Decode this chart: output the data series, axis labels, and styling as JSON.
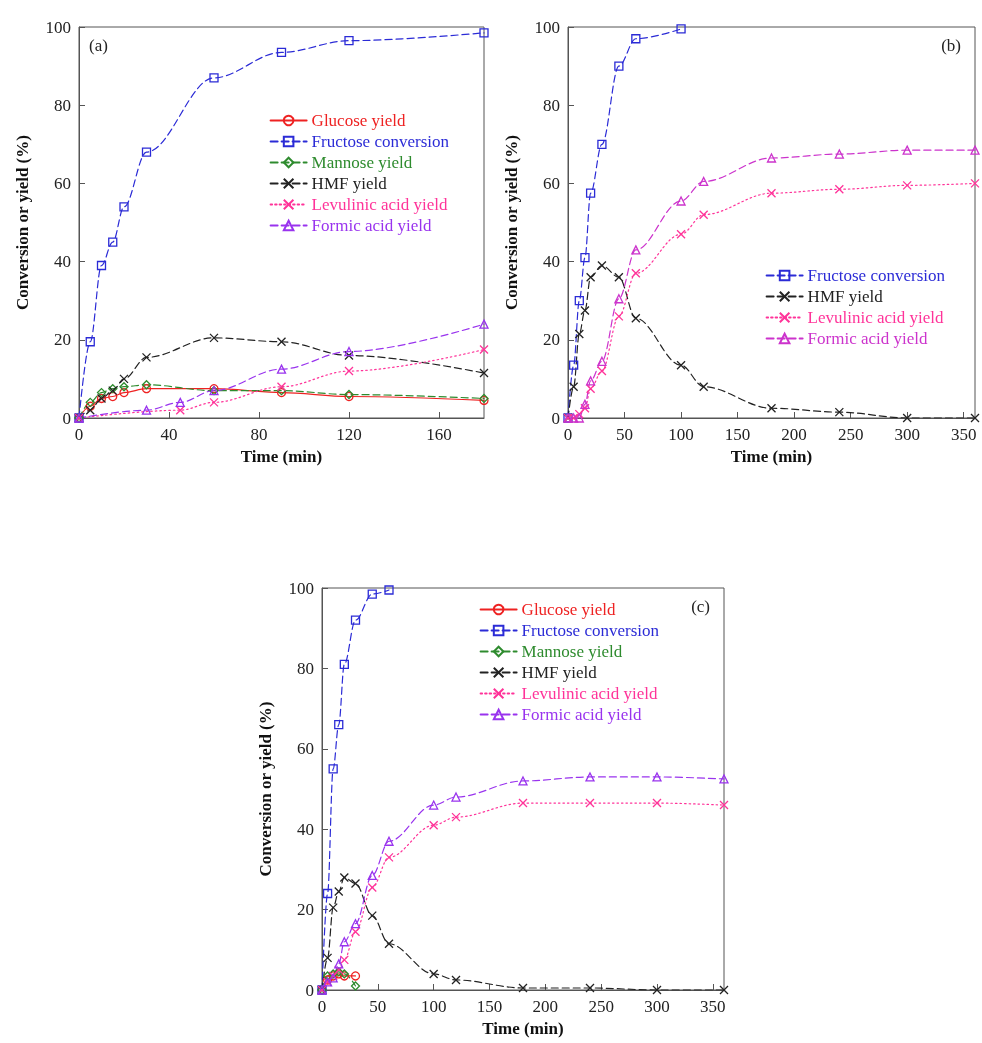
{
  "chart_data": [
    {
      "type": "line",
      "xlabel": "Time (min)",
      "ylabel": "Conversion or yield (%)",
      "annotations": [
        "(a)"
      ],
      "xlim": [
        0,
        180
      ],
      "xticks": [
        0,
        40,
        80,
        120,
        160
      ],
      "ylim": [
        0,
        100
      ],
      "yticks": [
        0,
        20,
        40,
        60,
        80,
        100
      ],
      "grid": false,
      "legend": "right",
      "series": [
        {
          "name": "Glucose yield",
          "color": "#ee2222",
          "marker": "circle",
          "line_style": "solid",
          "x": [
            0,
            5,
            10,
            15,
            20,
            30,
            60,
            90,
            120,
            180
          ],
          "values": [
            0,
            3,
            5,
            5.5,
            6.5,
            7.5,
            7.5,
            6.5,
            5.5,
            4.5
          ]
        },
        {
          "name": "Fructose conversion",
          "color": "#2b2bd6",
          "marker": "square",
          "line_style": "dashed",
          "x": [
            0,
            5,
            10,
            15,
            20,
            30,
            60,
            90,
            120,
            180
          ],
          "values": [
            0,
            19.5,
            39,
            45,
            54,
            68,
            87,
            93.5,
            96.5,
            98.5
          ]
        },
        {
          "name": "Mannose yield",
          "color": "#2e8b2e",
          "marker": "diamond",
          "line_style": "dashed",
          "x": [
            0,
            5,
            10,
            15,
            20,
            30,
            60,
            90,
            120,
            180
          ],
          "values": [
            0,
            4,
            6.5,
            7.5,
            8,
            8.5,
            7,
            7,
            6,
            5
          ]
        },
        {
          "name": "HMF yield",
          "color": "#222222",
          "marker": "cross",
          "line_style": "dashed",
          "x": [
            0,
            5,
            10,
            15,
            20,
            30,
            60,
            90,
            120,
            180
          ],
          "values": [
            0,
            2,
            5,
            7,
            10,
            15.5,
            20.5,
            19.5,
            16,
            11.5
          ]
        },
        {
          "name": "Levulinic acid yield",
          "color": "#ff3399",
          "marker": "cross",
          "line_style": "dotted",
          "x": [
            0,
            45,
            60,
            90,
            120,
            180
          ],
          "values": [
            0,
            2,
            4,
            8,
            12,
            17.5
          ]
        },
        {
          "name": "Formic acid yield",
          "color": "#9933ee",
          "marker": "triangle",
          "line_style": "dashed",
          "x": [
            0,
            30,
            45,
            60,
            90,
            120,
            180
          ],
          "values": [
            0,
            2,
            4,
            7,
            12.5,
            17,
            24
          ]
        }
      ]
    },
    {
      "type": "line",
      "xlabel": "Time (min)",
      "ylabel": "Conversion or yield (%)",
      "annotations": [
        "(b)"
      ],
      "xlim": [
        0,
        360
      ],
      "xticks": [
        0,
        50,
        100,
        150,
        200,
        250,
        300,
        350
      ],
      "ylim": [
        0,
        100
      ],
      "yticks": [
        0,
        20,
        40,
        60,
        80,
        100
      ],
      "grid": false,
      "legend": "bottom right",
      "series": [
        {
          "name": "Fructose conversion",
          "color": "#2b2bd6",
          "marker": "square",
          "line_style": "dashed",
          "x": [
            0,
            5,
            10,
            15,
            20,
            30,
            45,
            60,
            100
          ],
          "values": [
            0,
            13.5,
            30,
            41,
            57.5,
            70,
            90,
            97,
            99.5
          ]
        },
        {
          "name": "HMF yield",
          "color": "#222222",
          "marker": "cross",
          "line_style": "dashed",
          "x": [
            0,
            5,
            10,
            15,
            20,
            30,
            45,
            60,
            100,
            120,
            180,
            240,
            300,
            360
          ],
          "values": [
            0,
            8,
            21.5,
            27.5,
            36,
            39,
            36,
            25.5,
            13.5,
            8,
            2.5,
            1.5,
            0,
            0
          ]
        },
        {
          "name": "Levulinic acid yield",
          "color": "#ff3399",
          "marker": "cross",
          "line_style": "dotted",
          "x": [
            0,
            5,
            10,
            15,
            20,
            30,
            45,
            60,
            100,
            120,
            180,
            240,
            300,
            360
          ],
          "values": [
            0,
            0,
            1,
            2.5,
            7.5,
            12,
            26,
            37,
            47,
            52,
            57.5,
            58.5,
            59.5,
            60
          ]
        },
        {
          "name": "Formic acid yield",
          "color": "#cc33cc",
          "marker": "triangle",
          "line_style": "dashed",
          "x": [
            0,
            5,
            10,
            15,
            20,
            30,
            45,
            60,
            100,
            120,
            180,
            240,
            300,
            360
          ],
          "values": [
            0,
            0,
            0,
            3.5,
            9.5,
            14.5,
            30.5,
            43,
            55.5,
            60.5,
            66.5,
            67.5,
            68.5,
            68.5
          ]
        }
      ]
    },
    {
      "type": "line",
      "xlabel": "Time (min)",
      "ylabel": "Conversion or yield (%)",
      "annotations": [
        "(c)"
      ],
      "xlim": [
        0,
        360
      ],
      "xticks": [
        0,
        50,
        100,
        150,
        200,
        250,
        300,
        350
      ],
      "ylim": [
        0,
        100
      ],
      "yticks": [
        0,
        20,
        40,
        60,
        80,
        100
      ],
      "grid": false,
      "legend": "top right",
      "series": [
        {
          "name": "Glucose yield",
          "color": "#ee2222",
          "marker": "circle",
          "line_style": "solid",
          "x": [
            0,
            5,
            10,
            15,
            20,
            30
          ],
          "values": [
            0,
            2.5,
            3.5,
            4,
            3.5,
            3.5
          ]
        },
        {
          "name": "Fructose conversion",
          "color": "#2b2bd6",
          "marker": "square",
          "line_style": "dashed",
          "x": [
            0,
            5,
            10,
            15,
            20,
            30,
            45,
            60
          ],
          "values": [
            0,
            24,
            55,
            66,
            81,
            92,
            98.5,
            99.5
          ]
        },
        {
          "name": "Mannose yield",
          "color": "#2e8b2e",
          "marker": "diamond",
          "line_style": "dashed",
          "x": [
            0,
            5,
            10,
            15,
            20,
            30
          ],
          "values": [
            0,
            3.5,
            4,
            4.5,
            4,
            1
          ]
        },
        {
          "name": "HMF yield",
          "color": "#222222",
          "marker": "cross",
          "line_style": "dashed",
          "x": [
            0,
            5,
            10,
            15,
            20,
            30,
            45,
            60,
            100,
            120,
            180,
            240,
            300,
            360
          ],
          "values": [
            0,
            8,
            20.5,
            24.5,
            28,
            26.5,
            18.5,
            11.5,
            4,
            2.5,
            0.5,
            0.5,
            0,
            0
          ]
        },
        {
          "name": "Levulinic acid yield",
          "color": "#ff3399",
          "marker": "cross",
          "line_style": "dotted",
          "x": [
            0,
            5,
            10,
            15,
            20,
            30,
            45,
            60,
            100,
            120,
            180,
            240,
            300,
            360
          ],
          "values": [
            0,
            2,
            3.5,
            5,
            7.5,
            14.5,
            25.5,
            33,
            41,
            43,
            46.5,
            46.5,
            46.5,
            46
          ]
        },
        {
          "name": "Formic acid yield",
          "color": "#9933ee",
          "marker": "triangle",
          "line_style": "dashed",
          "x": [
            0,
            5,
            10,
            15,
            20,
            30,
            45,
            60,
            100,
            120,
            180,
            240,
            300,
            360
          ],
          "values": [
            0,
            2,
            3,
            6.5,
            12,
            16.5,
            28.5,
            37,
            46,
            48,
            52,
            53,
            53,
            52.5
          ]
        }
      ]
    }
  ]
}
